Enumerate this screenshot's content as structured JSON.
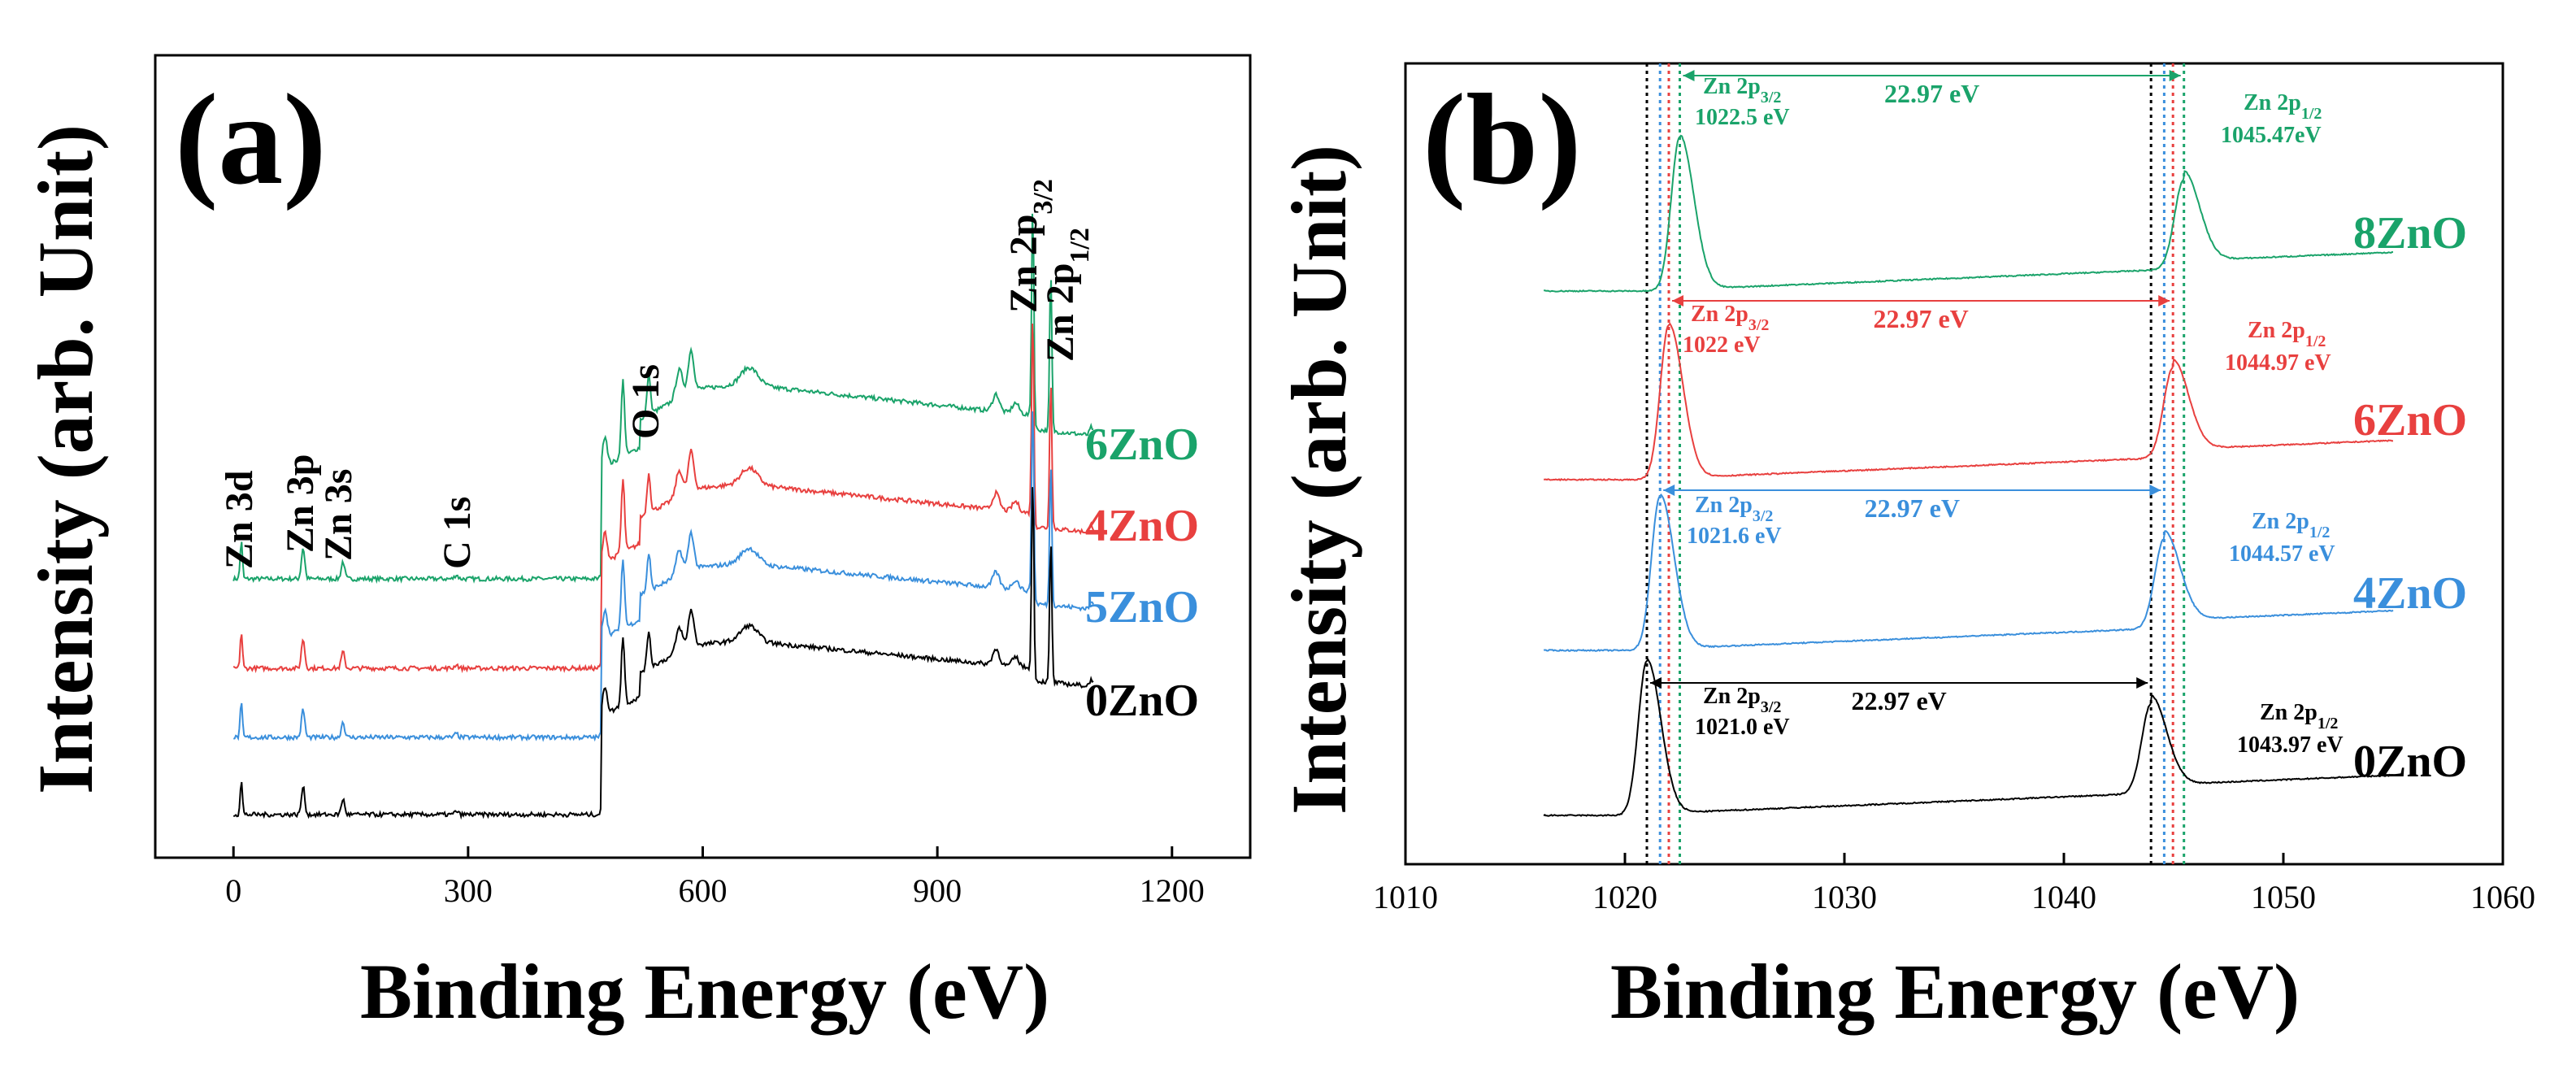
{
  "chart_data": [
    {
      "type": "line",
      "panel": "(a)",
      "xlabel": "Binding Energy (eV)",
      "ylabel": "Intensity (arb. Unit)",
      "xlim": [
        -100,
        1300
      ],
      "xticks": [
        0,
        300,
        600,
        900,
        1200
      ],
      "xtick_labels": [
        "0",
        "300",
        "600",
        "900",
        "1200"
      ],
      "grid": false,
      "series": [
        {
          "name": "6ZnO",
          "color": "#1aa36a",
          "offset": 3
        },
        {
          "name": "4ZnO",
          "color": "#e8403f",
          "offset": 2
        },
        {
          "name": "5ZnO",
          "color": "#3a8fdc",
          "offset": 1
        },
        {
          "name": "0ZnO",
          "color": "#000000",
          "offset": 0
        }
      ],
      "peaks": [
        {
          "name": "Zn 3d",
          "be": 10
        },
        {
          "name": "Zn 3p",
          "be": 89
        },
        {
          "name": "Zn 3s",
          "be": 140
        },
        {
          "name": "C 1s",
          "be": 285
        },
        {
          "name": "O 1s",
          "be": 531
        },
        {
          "name": "Zn 2p3/2",
          "be": 1022
        },
        {
          "name": "Zn 2p1/2",
          "be": 1045
        }
      ],
      "peak_labels": [
        {
          "main": "Zn 3d",
          "sub": ""
        },
        {
          "main": "Zn 3p",
          "sub": ""
        },
        {
          "main": "Zn 3s",
          "sub": ""
        },
        {
          "main": "C 1s",
          "sub": ""
        },
        {
          "main": "O 1s",
          "sub": ""
        },
        {
          "main": "Zn 2p",
          "sub": "3/2"
        },
        {
          "main": "Zn 2p",
          "sub": "1/2"
        }
      ]
    },
    {
      "type": "line",
      "panel": "(b)",
      "xlabel": "Binding Energy (eV)",
      "ylabel": "Intensity (arb. Unit)",
      "xlim": [
        1010,
        1060
      ],
      "xticks": [
        1010,
        1020,
        1030,
        1040,
        1050,
        1060
      ],
      "xtick_labels": [
        "1010",
        "1020",
        "1030",
        "1040",
        "1050",
        "1060"
      ],
      "grid": false,
      "series": [
        {
          "name": "8ZnO",
          "color": "#1aa36a",
          "p32": 1022.5,
          "p12": 1045.47,
          "p32_label": "1022.5 eV",
          "p12_label": "1045.47eV",
          "split_label": "22.97 eV",
          "offset": 3
        },
        {
          "name": "6ZnO",
          "color": "#e8403f",
          "p32": 1022.0,
          "p12": 1044.97,
          "p32_label": "1022 eV",
          "p12_label": "1044.97 eV",
          "split_label": "22.97 eV",
          "offset": 2
        },
        {
          "name": "4ZnO",
          "color": "#3a8fdc",
          "p32": 1021.6,
          "p12": 1044.57,
          "p32_label": "1021.6 eV",
          "p12_label": "1044.57 eV",
          "split_label": "22.97 eV",
          "offset": 1
        },
        {
          "name": "0ZnO",
          "color": "#000000",
          "p32": 1021.0,
          "p12": 1043.97,
          "p32_label": "1021.0 eV",
          "p12_label": "1043.97 eV",
          "split_label": "22.97 eV",
          "offset": 0
        }
      ],
      "peak_name_main": "Zn 2p",
      "peak_name_sub_32": "3/2",
      "peak_name_sub_12": "1/2"
    }
  ]
}
